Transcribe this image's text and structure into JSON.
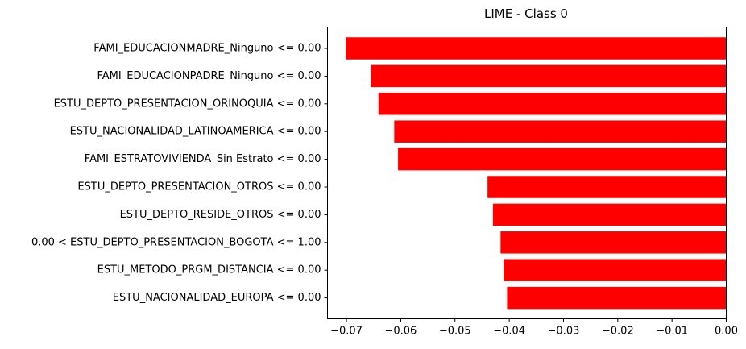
{
  "chart_data": {
    "type": "bar",
    "orientation": "horizontal",
    "title": "LIME - Class 0",
    "xlabel": "",
    "ylabel": "",
    "xlim": [
      -0.0735,
      0.0
    ],
    "x_ticks": [
      -0.07,
      -0.06,
      -0.05,
      -0.04,
      -0.03,
      -0.02,
      -0.01,
      0.0
    ],
    "x_tick_labels": [
      "−0.07",
      "−0.06",
      "−0.05",
      "−0.04",
      "−0.03",
      "−0.02",
      "−0.01",
      "0.00"
    ],
    "categories": [
      "FAMI_EDUCACIONMADRE_Ninguno <= 0.00",
      "FAMI_EDUCACIONPADRE_Ninguno <= 0.00",
      "ESTU_DEPTO_PRESENTACION_ORINOQUIA <= 0.00",
      "ESTU_NACIONALIDAD_LATINOAMERICA <= 0.00",
      "FAMI_ESTRATOVIVIENDA_Sin Estrato <= 0.00",
      "ESTU_DEPTO_PRESENTACION_OTROS <= 0.00",
      "ESTU_DEPTO_RESIDE_OTROS <= 0.00",
      "0.00 < ESTU_DEPTO_PRESENTACION_BOGOTA <= 1.00",
      "ESTU_METODO_PRGM_DISTANCIA <= 0.00",
      "ESTU_NACIONALIDAD_EUROPA <= 0.00"
    ],
    "values": [
      -0.0701,
      -0.0655,
      -0.0641,
      -0.0612,
      -0.0605,
      -0.044,
      -0.043,
      -0.0416,
      -0.041,
      -0.0404
    ],
    "bar_color": "#ff0000",
    "grid": false,
    "legend": "none"
  }
}
